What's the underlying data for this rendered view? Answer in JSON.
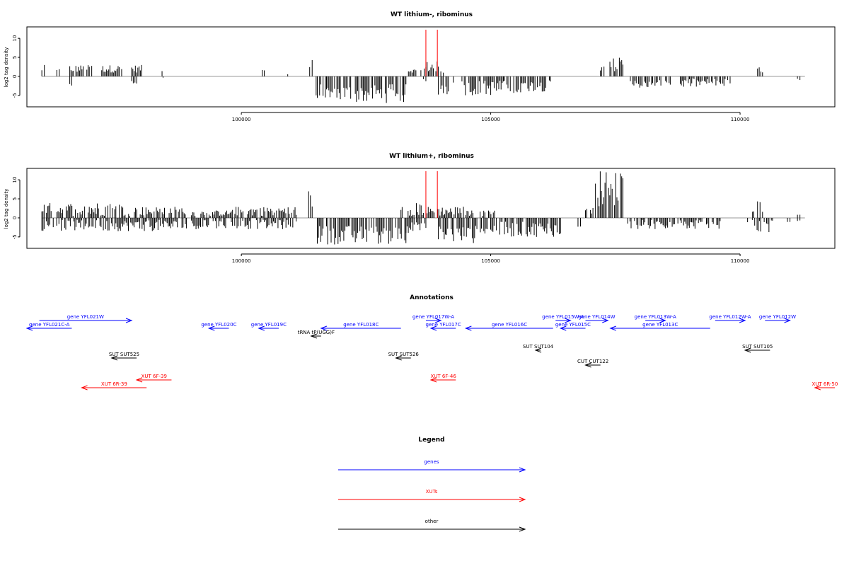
{
  "chart_data": [
    {
      "type": "bar",
      "title": "WT lithium-, ribominus",
      "ylabel": "log2 tag density",
      "xlim": [
        95700,
        111900
      ],
      "ylim": [
        -8,
        13
      ],
      "x_ticks": [
        100000,
        105000,
        110000
      ],
      "y_ticks": [
        -5,
        0,
        5,
        10
      ],
      "x_tick_labels": [
        "100000",
        "105000",
        "110000"
      ],
      "y_tick_labels": [
        "-5",
        "0",
        "5",
        "10"
      ],
      "markers": [
        {
          "x": 103700,
          "color": "#ff0000"
        },
        {
          "x": 103930,
          "color": "#ff0000"
        }
      ],
      "series": [
        {
          "segments": [
            {
              "from": 96000,
              "to": 96050,
              "min": 1,
              "max": 3
            },
            {
              "from": 96300,
              "to": 96350,
              "min": 1,
              "max": 2
            },
            {
              "from": 96560,
              "to": 97000,
              "min": 1,
              "max": 3
            },
            {
              "from": 97200,
              "to": 97600,
              "min": 1,
              "max": 3
            },
            {
              "from": 97800,
              "to": 98000,
              "min": 1,
              "max": 3
            },
            {
              "from": 98400,
              "to": 98420,
              "min": 1,
              "max": 3
            },
            {
              "from": 100420,
              "to": 100460,
              "min": 1,
              "max": 2
            },
            {
              "from": 100920,
              "to": 100940,
              "min": 0.5,
              "max": 1
            },
            {
              "from": 101370,
              "to": 101420,
              "min": 2,
              "max": 7
            },
            {
              "from": 103350,
              "to": 103500,
              "min": 1,
              "max": 2
            },
            {
              "from": 103600,
              "to": 103700,
              "min": 1,
              "max": 3
            },
            {
              "from": 103700,
              "to": 103950,
              "min": 1,
              "max": 4
            },
            {
              "from": 104000,
              "to": 104050,
              "min": 0.5,
              "max": 1.5
            },
            {
              "from": 107200,
              "to": 107650,
              "min": 1,
              "max": 5
            },
            {
              "from": 110350,
              "to": 110450,
              "min": 1,
              "max": 3
            }
          ]
        },
        {
          "segments": [
            {
              "from": 96560,
              "to": 96600,
              "min": -3.5,
              "max": -0.5
            },
            {
              "from": 97800,
              "to": 97900,
              "min": -2.5,
              "max": -0.5
            },
            {
              "from": 98420,
              "to": 98440,
              "min": -1,
              "max": -0.3
            },
            {
              "from": 101500,
              "to": 103300,
              "min": -7,
              "max": -2
            },
            {
              "from": 103650,
              "to": 103700,
              "min": -1.5,
              "max": -0.5
            },
            {
              "from": 103950,
              "to": 104250,
              "min": -5,
              "max": -1
            },
            {
              "from": 104400,
              "to": 105600,
              "min": -5,
              "max": -1
            },
            {
              "from": 105600,
              "to": 106200,
              "min": -4,
              "max": -1
            },
            {
              "from": 107800,
              "to": 108600,
              "min": -3,
              "max": -1
            },
            {
              "from": 108800,
              "to": 109700,
              "min": -3,
              "max": -0.5
            },
            {
              "from": 109750,
              "to": 109800,
              "min": -2,
              "max": -0.5
            },
            {
              "from": 111150,
              "to": 111200,
              "min": -2.5,
              "max": -0.5
            }
          ]
        }
      ]
    },
    {
      "type": "bar",
      "title": "WT lithium+, ribominus",
      "ylabel": "log2 tag density",
      "xlim": [
        95700,
        111900
      ],
      "ylim": [
        -8,
        13
      ],
      "x_ticks": [
        100000,
        105000,
        110000
      ],
      "y_ticks": [
        -5,
        0,
        5,
        10
      ],
      "x_tick_labels": [
        "100000",
        "105000",
        "110000"
      ],
      "y_tick_labels": [
        "-5",
        "0",
        "5",
        "10"
      ],
      "markers": [
        {
          "x": 103700,
          "color": "#ff0000"
        },
        {
          "x": 103930,
          "color": "#ff0000"
        }
      ],
      "series": [
        {
          "segments": [
            {
              "from": 96000,
              "to": 97600,
              "min": 0.5,
              "max": 4
            },
            {
              "from": 97600,
              "to": 98900,
              "min": 0.5,
              "max": 3
            },
            {
              "from": 99000,
              "to": 99800,
              "min": 0.5,
              "max": 2
            },
            {
              "from": 99800,
              "to": 101100,
              "min": 0.5,
              "max": 3
            },
            {
              "from": 101350,
              "to": 101420,
              "min": 2,
              "max": 7.5
            },
            {
              "from": 103200,
              "to": 103700,
              "min": 0.5,
              "max": 4
            },
            {
              "from": 103700,
              "to": 104500,
              "min": 0.5,
              "max": 3
            },
            {
              "from": 104500,
              "to": 105100,
              "min": 0.5,
              "max": 2
            },
            {
              "from": 106900,
              "to": 107050,
              "min": 1,
              "max": 3
            },
            {
              "from": 107100,
              "to": 107650,
              "min": 3,
              "max": 12.5
            },
            {
              "from": 110150,
              "to": 110450,
              "min": 1,
              "max": 5
            },
            {
              "from": 111150,
              "to": 111200,
              "min": 0.5,
              "max": 1
            }
          ]
        },
        {
          "segments": [
            {
              "from": 96000,
              "to": 98900,
              "min": -3.5,
              "max": -0.5
            },
            {
              "from": 99000,
              "to": 101100,
              "min": -3,
              "max": -0.5
            },
            {
              "from": 101500,
              "to": 103300,
              "min": -7,
              "max": -2
            },
            {
              "from": 103300,
              "to": 103700,
              "min": -4,
              "max": -1
            },
            {
              "from": 103950,
              "to": 104700,
              "min": -7,
              "max": -2
            },
            {
              "from": 104700,
              "to": 106400,
              "min": -5,
              "max": -1
            },
            {
              "from": 106750,
              "to": 106800,
              "min": -2.5,
              "max": -0.5
            },
            {
              "from": 107700,
              "to": 109600,
              "min": -3,
              "max": -0.5
            },
            {
              "from": 110150,
              "to": 110650,
              "min": -4,
              "max": -0.5
            },
            {
              "from": 110950,
              "to": 111000,
              "min": -2,
              "max": -0.5
            },
            {
              "from": 111150,
              "to": 111200,
              "min": -1.5,
              "max": -0.5
            }
          ]
        }
      ]
    }
  ],
  "annotations": {
    "title": "Annotations",
    "colors": {
      "gene": "#0000ff",
      "xut": "#ff0000",
      "other": "#000000"
    },
    "features": [
      {
        "label": "gene YFL021W",
        "kind": "gene",
        "row": 0,
        "start": 95950,
        "end": 97800
      },
      {
        "label": "gene YFL021C-A",
        "kind": "gene",
        "row": 1,
        "start": 95700,
        "end": 96600
      },
      {
        "label": "gene YFL020C",
        "kind": "gene",
        "row": 1,
        "start": 99350,
        "end": 99750
      },
      {
        "label": "gene YFL019C",
        "kind": "gene",
        "row": 1,
        "start": 100350,
        "end": 100750
      },
      {
        "label": "tRNA tP(UGG)F",
        "kind": "other",
        "row": 2,
        "start": 101400,
        "end": 101600
      },
      {
        "label": "gene YFL018C",
        "kind": "gene",
        "row": 1,
        "start": 101600,
        "end": 103200
      },
      {
        "label": "gene YFL017W-A",
        "kind": "gene",
        "row": 0,
        "start": 103700,
        "end": 104000
      },
      {
        "label": "gene YFL017C",
        "kind": "gene",
        "row": 1,
        "start": 103800,
        "end": 104300
      },
      {
        "label": "gene YFL016C",
        "kind": "gene",
        "row": 1,
        "start": 104500,
        "end": 106250
      },
      {
        "label": "gene YFL015W-A",
        "kind": "gene",
        "row": 0,
        "start": 106300,
        "end": 106600
      },
      {
        "label": "gene YFL015C",
        "kind": "gene",
        "row": 1,
        "start": 106400,
        "end": 106900
      },
      {
        "label": "gene YFL014W",
        "kind": "gene",
        "row": 0,
        "start": 106900,
        "end": 107350
      },
      {
        "label": "gene YFL013W-A",
        "kind": "gene",
        "row": 0,
        "start": 108100,
        "end": 108500
      },
      {
        "label": "gene YFL013C",
        "kind": "gene",
        "row": 1,
        "start": 107400,
        "end": 109400
      },
      {
        "label": "gene YFL012W-A",
        "kind": "gene",
        "row": 0,
        "start": 109500,
        "end": 110100
      },
      {
        "label": "gene YFL012W",
        "kind": "gene",
        "row": 0,
        "start": 110500,
        "end": 111000
      },
      {
        "label": "SUT SUT525",
        "kind": "other",
        "row": 3,
        "start": 97400,
        "end": 97900
      },
      {
        "label": "SUT SUT526",
        "kind": "other",
        "row": 3,
        "start": 103100,
        "end": 103400
      },
      {
        "label": "SUT SUT104",
        "kind": "other",
        "row": 4,
        "start": 105900,
        "end": 106000
      },
      {
        "label": "CUT CUT122",
        "kind": "other",
        "row": 5,
        "start": 106900,
        "end": 107200
      },
      {
        "label": "SUT SUT105",
        "kind": "other",
        "row": 4,
        "start": 110100,
        "end": 110600
      },
      {
        "label": "XUT 6F-39",
        "kind": "xut",
        "row": 6,
        "start": 97900,
        "end": 98600
      },
      {
        "label": "XUT 6R-39",
        "kind": "xut",
        "row": 7,
        "start": 96800,
        "end": 98100
      },
      {
        "label": "XUT 6F-46",
        "kind": "xut",
        "row": 6,
        "start": 103800,
        "end": 104300
      },
      {
        "label": "XUT 6R-50",
        "kind": "xut",
        "row": 7,
        "start": 111500,
        "end": 111900
      }
    ]
  },
  "legend": {
    "title": "Legend",
    "items": [
      {
        "label": "genes",
        "kind": "gene"
      },
      {
        "label": "XUTs",
        "kind": "xut"
      },
      {
        "label": "other",
        "kind": "other"
      }
    ]
  }
}
